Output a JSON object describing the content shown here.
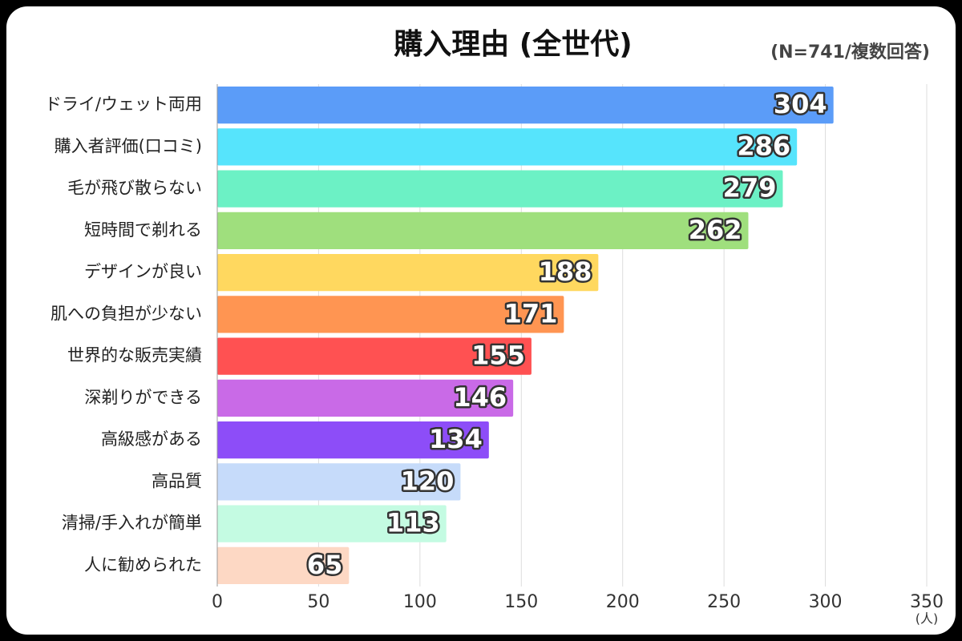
{
  "chart_data": {
    "type": "hbar",
    "title": "購入理由 (全世代)",
    "subtitle": "(N=741/複数回答)",
    "xlabel": "(人)",
    "categories": [
      "ドライ/ウェット両用",
      "購入者評価(口コミ)",
      "毛が飛び散らない",
      "短時間で剃れる",
      "デザインが良い",
      "肌への負担が少ない",
      "世界的な販売実績",
      "深剃りができる",
      "高級感がある",
      "高品質",
      "清掃/手入れが簡単",
      "人に勧められた"
    ],
    "values": [
      304,
      286,
      279,
      262,
      188,
      171,
      155,
      146,
      134,
      120,
      113,
      65
    ],
    "colors": [
      "#5b9cf8",
      "#56e4fc",
      "#6cf1c5",
      "#9fdf7d",
      "#ffd85f",
      "#ff9552",
      "#ff5152",
      "#c96ae7",
      "#8d4df8",
      "#c6dbfa",
      "#c4fbe2",
      "#fdd8c4"
    ],
    "xlim": [
      0,
      350
    ],
    "xticks": [
      0,
      50,
      100,
      150,
      200,
      250,
      300,
      350
    ],
    "grid": true
  }
}
